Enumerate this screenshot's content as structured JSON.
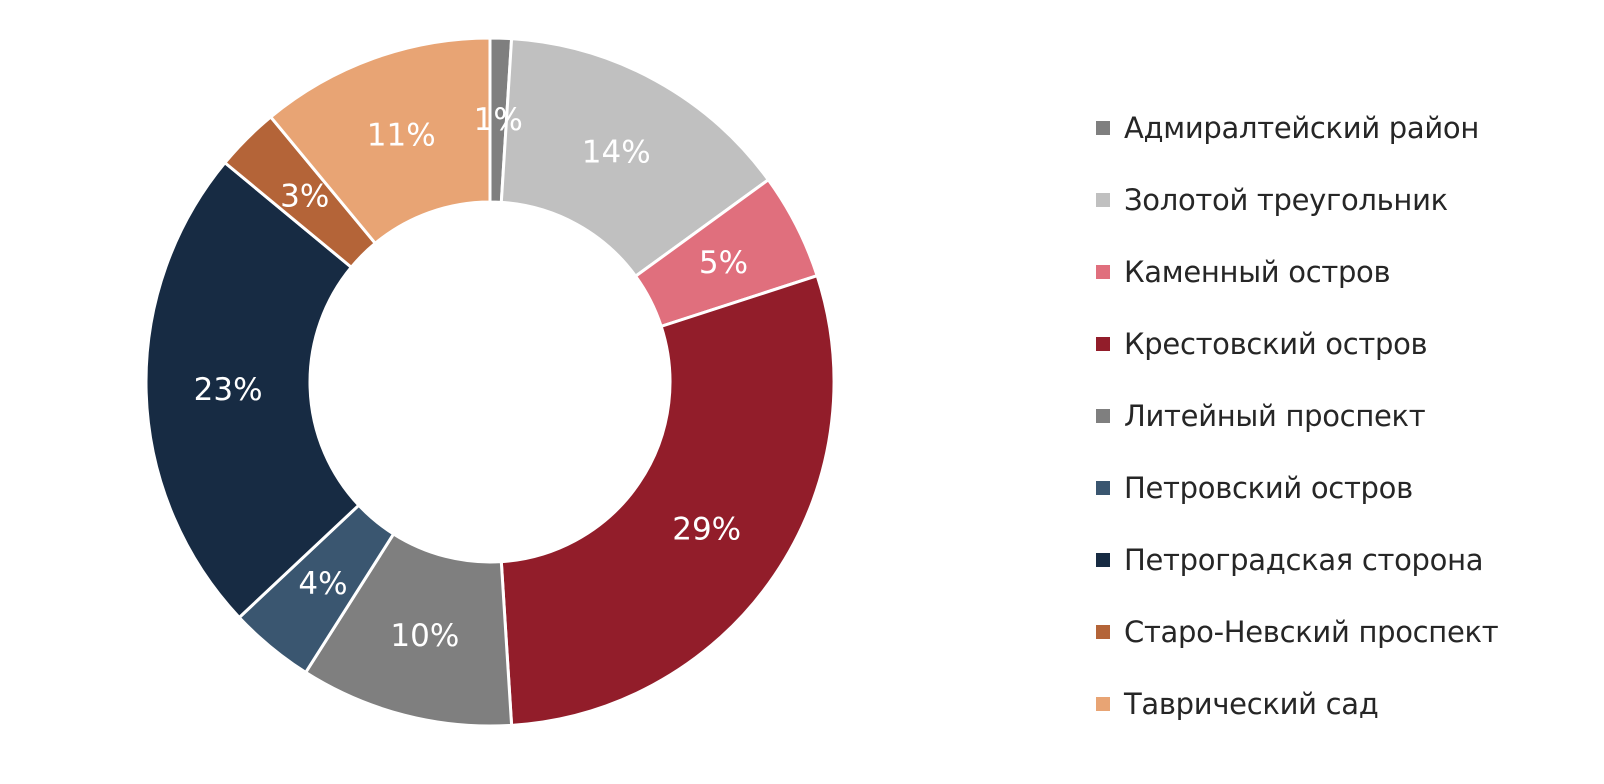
{
  "chart_data": {
    "type": "pie",
    "variant": "donut",
    "title": "",
    "legend_position": "right",
    "categories": [
      "Адмиралтейский район",
      "Золотой треугольник",
      "Каменный остров",
      "Крестовский остров",
      "Литейный проспект",
      "Петровский остров",
      "Петроградская сторона",
      "Старо-Невский проспект",
      "Таврический сад"
    ],
    "values": [
      1,
      14,
      5,
      29,
      10,
      4,
      23,
      3,
      11
    ],
    "data_labels": [
      "1%",
      "14%",
      "5%",
      "29%",
      "10%",
      "4%",
      "23%",
      "3%",
      "11%"
    ],
    "colors": [
      "#7f7f7f",
      "#c0c0c0",
      "#e06f7d",
      "#921d2a",
      "#7f7f7f",
      "#3a5670",
      "#172b43",
      "#b46438",
      "#e8a474"
    ],
    "unit": "%"
  }
}
